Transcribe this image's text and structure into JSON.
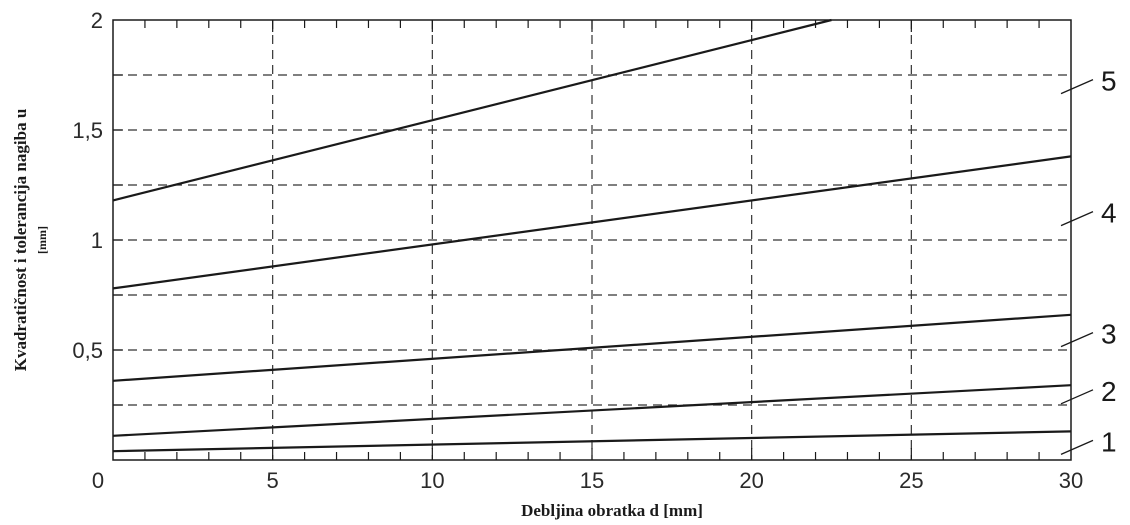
{
  "chart_data": {
    "type": "line",
    "title": "",
    "xlabel": "Debljina obratka d [mm]",
    "ylabel": "Kvadratičnost i tolerancija nagiba u",
    "ylabel_unit": "[mm]",
    "xlim": [
      0,
      30
    ],
    "ylim": [
      0,
      2
    ],
    "x_ticks": [
      0,
      5,
      10,
      15,
      20,
      25,
      30
    ],
    "x_tick_labels": [
      "0",
      "5",
      "10",
      "15",
      "20",
      "25",
      "30"
    ],
    "y_ticks": [
      0.5,
      1,
      1.5,
      2
    ],
    "y_tick_labels": [
      "0,5",
      "1",
      "1,5",
      "2"
    ],
    "grid": true,
    "grid_style": "dashed",
    "series": [
      {
        "name": "1",
        "x": [
          0,
          30
        ],
        "y": [
          0.04,
          0.13
        ]
      },
      {
        "name": "2",
        "x": [
          0,
          30
        ],
        "y": [
          0.11,
          0.34
        ]
      },
      {
        "name": "3",
        "x": [
          0,
          30
        ],
        "y": [
          0.36,
          0.66
        ]
      },
      {
        "name": "4",
        "x": [
          0,
          30
        ],
        "y": [
          0.78,
          1.38
        ]
      },
      {
        "name": "5",
        "x": [
          0,
          22.5
        ],
        "y": [
          1.18,
          2.0
        ]
      }
    ],
    "colors": {
      "line": "#1a1a1a",
      "grid": "#333333",
      "frame": "#1a1a1a"
    }
  }
}
